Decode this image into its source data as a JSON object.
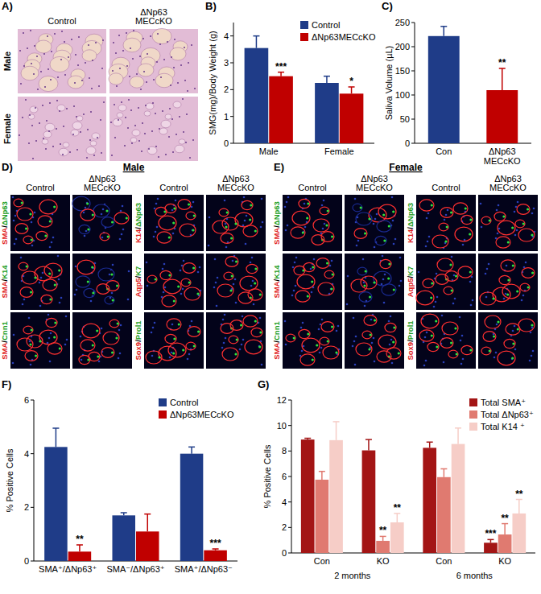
{
  "chart_data": [
    {
      "type": "bar",
      "title": "B)",
      "ylabel": "SMG(mg)/Body Weight (g)",
      "categories": [
        "Male",
        "Female"
      ],
      "series": [
        {
          "name": "Control",
          "color": "#1f3c88",
          "values": [
            3.55,
            2.25
          ],
          "errors": [
            0.45,
            0.25
          ],
          "significance": [
            null,
            null
          ]
        },
        {
          "name": "ΔNp63MECcKO",
          "color": "#c00000",
          "values": [
            2.5,
            1.85
          ],
          "errors": [
            0.15,
            0.25
          ],
          "significance": [
            "***",
            "*"
          ]
        }
      ],
      "ylim": [
        0,
        4.5
      ],
      "yticks": [
        0,
        1,
        2,
        3,
        4
      ],
      "legend": "upper right"
    },
    {
      "type": "bar",
      "title": "C)",
      "ylabel": "Saliva Volume (µL)",
      "categories": [
        "Con",
        "ΔNp63 MECcKO"
      ],
      "values": [
        222,
        110
      ],
      "errors": [
        20,
        45
      ],
      "significance": [
        null,
        "**"
      ],
      "colors": [
        "#1f3c88",
        "#c00000"
      ],
      "ylim": [
        0,
        250
      ],
      "yticks": [
        0,
        50,
        100,
        150,
        200,
        250
      ]
    },
    {
      "type": "bar",
      "title": "F)",
      "ylabel": "% Positive Cells",
      "categories": [
        "SMA⁺/ΔNp63⁺",
        "SMA⁻/ΔNp63⁺",
        "SMA⁺/ΔNp63⁻"
      ],
      "series": [
        {
          "name": "Control",
          "color": "#1f3c88",
          "values": [
            4.25,
            1.7,
            4.0
          ],
          "errors": [
            0.7,
            0.1,
            0.25
          ],
          "significance": [
            null,
            null,
            null
          ]
        },
        {
          "name": "ΔNp63MECcKO",
          "color": "#c00000",
          "values": [
            0.35,
            1.1,
            0.4
          ],
          "errors": [
            0.25,
            0.65,
            0.05
          ],
          "significance": [
            "**",
            null,
            "***"
          ]
        }
      ],
      "ylim": [
        0,
        6
      ],
      "yticks": [
        0,
        2,
        4,
        6
      ],
      "legend": "upper right"
    },
    {
      "type": "bar",
      "title": "G)",
      "ylabel": "% Positive Cells",
      "categories": [
        "Con",
        "KO",
        "Con",
        "KO"
      ],
      "groups": [
        "2 months",
        "6 months"
      ],
      "series": [
        {
          "name": "Total SMA⁺",
          "color": "#a31515",
          "values": [
            8.9,
            8.05,
            8.25,
            0.8
          ],
          "errors": [
            0.1,
            0.85,
            0.45,
            0.25
          ],
          "significance": [
            null,
            null,
            null,
            "***"
          ]
        },
        {
          "name": "Total ΔNp63⁺",
          "color": "#e07a70",
          "values": [
            5.75,
            0.95,
            5.95,
            1.45
          ],
          "errors": [
            0.65,
            0.35,
            0.65,
            0.85
          ],
          "significance": [
            null,
            "**",
            null,
            "**"
          ]
        },
        {
          "name": "Total K14 ⁺",
          "color": "#f6cdc7",
          "values": [
            8.85,
            2.4,
            8.55,
            3.1
          ],
          "errors": [
            1.45,
            0.7,
            1.25,
            1.1
          ],
          "significance": [
            null,
            "**",
            null,
            "**"
          ]
        }
      ],
      "ylim": [
        0,
        12
      ],
      "yticks": [
        0,
        2,
        4,
        6,
        8,
        10,
        12
      ],
      "legend": "upper right"
    }
  ],
  "figure": {
    "A": {
      "letter": "A)",
      "columns": [
        [
          "Control"
        ],
        [
          "ΔNp63",
          "MECcKO"
        ]
      ],
      "rows": [
        "Male",
        "Female"
      ]
    },
    "D": {
      "letter": "D)",
      "title": "Male",
      "columns": [
        [
          "Control"
        ],
        [
          "ΔNp63",
          "MECcKO"
        ],
        [
          "Control"
        ],
        [
          "ΔNp63",
          "MECcKO"
        ]
      ],
      "stains": [
        [
          "SMA/ΔNp63",
          "SMA/K14",
          "SMA/Cnn1"
        ],
        [
          "K14/ΔNp63",
          "Aqp5/K7",
          "Sox9/Prol1"
        ]
      ]
    },
    "E": {
      "letter": "E)",
      "title": "Female",
      "columns": [
        [
          "Control"
        ],
        [
          "ΔNp63",
          "MECcKO"
        ],
        [
          "Control"
        ],
        [
          "ΔNp63",
          "MECcKO"
        ]
      ],
      "stains": [
        [
          "SMA/ΔNp63",
          "SMA/K14",
          "SMA/Cnn1"
        ],
        [
          "K14/ΔNp63",
          "Aqp5/K7",
          "Sox9/Prol1"
        ]
      ]
    }
  }
}
